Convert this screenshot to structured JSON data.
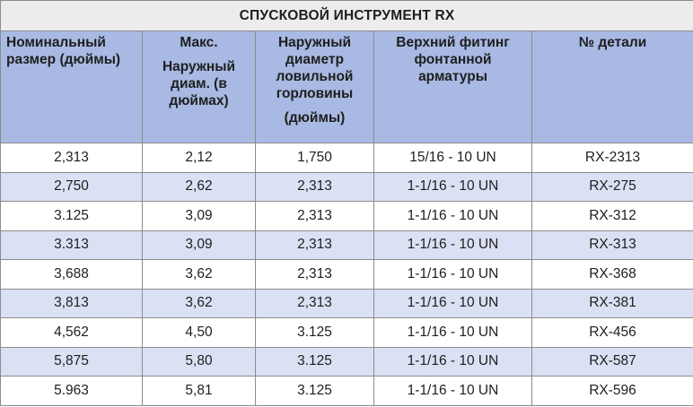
{
  "table": {
    "title": "СПУСКОВОЙ ИНСТРУМЕНТ RX",
    "headers": [
      {
        "lines": [
          "Номинальный",
          "размер (дюймы)"
        ]
      },
      {
        "lines": [
          "Макс.",
          "",
          "Наружный",
          "диам. (в",
          "дюймах)"
        ]
      },
      {
        "lines": [
          "Наружный",
          "диаметр",
          "ловильной",
          "горловины",
          "",
          "(дюймы)"
        ]
      },
      {
        "lines": [
          "Верхний фитинг",
          "фонтанной",
          "арматуры"
        ]
      },
      {
        "lines": [
          "№ детали"
        ]
      }
    ],
    "rows": [
      [
        "2,313",
        "2,12",
        "1,750",
        "15/16 - 10 UN",
        "RX-2313"
      ],
      [
        "2,750",
        "2,62",
        "2,313",
        "1-1/16 - 10 UN",
        "RX-275"
      ],
      [
        "3.125",
        "3,09",
        "2,313",
        "1-1/16 - 10 UN",
        "RX-312"
      ],
      [
        "3.313",
        "3,09",
        "2,313",
        "1-1/16 - 10 UN",
        "RX-313"
      ],
      [
        "3,688",
        "3,62",
        "2,313",
        "1-1/16 - 10 UN",
        "RX-368"
      ],
      [
        "3,813",
        "3,62",
        "2,313",
        "1-1/16 - 10 UN",
        "RX-381"
      ],
      [
        "4,562",
        "4,50",
        "3.125",
        "1-1/16 - 10 UN",
        "RX-456"
      ],
      [
        "5,875",
        "5,80",
        "3.125",
        "1-1/16 - 10 UN",
        "RX-587"
      ],
      [
        "5.963",
        "5,81",
        "3.125",
        "1-1/16 - 10 UN",
        "RX-596"
      ]
    ]
  }
}
